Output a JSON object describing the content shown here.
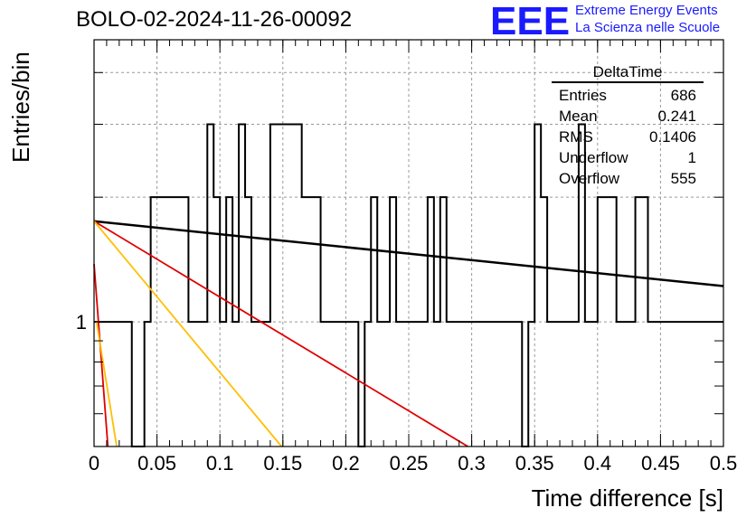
{
  "title": "BOLO-02-2024-11-26-00092",
  "logo": {
    "mark": "EEE",
    "line1": "Extreme Energy Events",
    "line2": "La Scienza nelle Scuole"
  },
  "stats": {
    "name": "DeltaTime",
    "rows": [
      {
        "label": "Entries",
        "value": "686"
      },
      {
        "label": "Mean",
        "value": "0.241"
      },
      {
        "label": "RMS",
        "value": "0.1406"
      },
      {
        "label": "Underflow",
        "value": "1"
      },
      {
        "label": "Overflow",
        "value": "555"
      }
    ]
  },
  "colors": {
    "histogram": "#000000",
    "fit_black": "#000000",
    "fit_red": "#e00000",
    "fit_orange": "#ffbf00",
    "logo": "#1a1aff",
    "grid": "#999999"
  },
  "chart_data": {
    "type": "histogram",
    "xlabel": "Time difference [s]",
    "ylabel": "Entries/bin",
    "xlim": [
      0,
      0.5
    ],
    "ylim": [
      0.5,
      4.8
    ],
    "yscale": "log",
    "grid": true,
    "x_ticks": [
      "0",
      "0.05",
      "0.1",
      "0.15",
      "0.2",
      "0.25",
      "0.3",
      "0.35",
      "0.4",
      "0.45",
      "0.5"
    ],
    "y_ticks": [
      "1"
    ],
    "bin_width": 0.005,
    "bins_start": 0,
    "bin_counts": [
      1,
      1,
      1,
      1,
      1,
      1,
      0,
      0,
      1,
      2,
      2,
      2,
      2,
      2,
      2,
      1,
      1,
      1,
      3,
      2,
      1,
      2,
      1,
      3,
      2,
      1,
      1,
      1,
      3,
      3,
      3,
      3,
      3,
      2,
      2,
      2,
      1,
      1,
      1,
      1,
      1,
      1,
      0,
      1,
      2,
      1,
      1,
      2,
      1,
      1,
      1,
      1,
      1,
      2,
      1,
      2,
      1,
      1,
      1,
      1,
      1,
      1,
      1,
      1,
      1,
      1,
      1,
      1,
      0,
      1,
      3,
      2,
      1,
      1,
      1,
      1,
      1,
      3,
      1,
      1,
      2,
      2,
      2,
      1,
      1,
      1,
      2,
      2,
      1,
      1,
      1,
      1,
      1,
      1,
      1,
      1,
      1,
      1,
      1,
      1
    ],
    "fits": [
      {
        "color": "black",
        "x": [
          0,
          0.5
        ],
        "y": [
          1.75,
          1.22
        ]
      },
      {
        "color": "red",
        "x": [
          0,
          0.297
        ],
        "y": [
          1.75,
          0.5
        ]
      },
      {
        "color": "orange",
        "x": [
          0,
          0.149
        ],
        "y": [
          1.75,
          0.5
        ]
      },
      {
        "color": "red",
        "x": [
          0,
          0.011
        ],
        "y": [
          1.38,
          0.5
        ]
      },
      {
        "color": "orange",
        "x": [
          0.002,
          0.018
        ],
        "y": [
          1.0,
          0.5
        ]
      }
    ]
  }
}
